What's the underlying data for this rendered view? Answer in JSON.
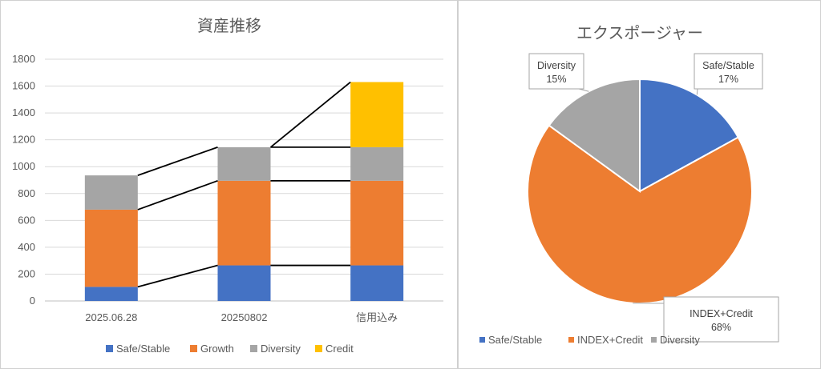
{
  "chart_data": [
    {
      "type": "bar",
      "stacked": true,
      "title": "資産推移",
      "categories": [
        "2025.06.28",
        "20250802",
        "信用込み"
      ],
      "series": [
        {
          "name": "Safe/Stable",
          "values": [
            105,
            265,
            265
          ],
          "color": "#4472C4"
        },
        {
          "name": "Growth",
          "values": [
            575,
            630,
            630
          ],
          "color": "#ED7D31"
        },
        {
          "name": "Diversity",
          "values": [
            255,
            250,
            250
          ],
          "color": "#A5A5A5"
        },
        {
          "name": "Credit",
          "values": [
            0,
            0,
            485
          ],
          "color": "#FFC000"
        }
      ],
      "ylim": [
        0,
        1800
      ],
      "yticks": [
        0,
        200,
        400,
        600,
        800,
        1000,
        1200,
        1400,
        1600,
        1800
      ],
      "grid": true,
      "legend": "bottom",
      "series_lines": true
    },
    {
      "type": "pie",
      "title": "エクスポージャー",
      "slices": [
        {
          "name": "Safe/Stable",
          "value": 17,
          "label": "17%",
          "color": "#4472C4"
        },
        {
          "name": "INDEX+Credit",
          "value": 68,
          "label": "68%",
          "color": "#ED7D31"
        },
        {
          "name": "Diversity",
          "value": 15,
          "label": "15%",
          "color": "#A5A5A5"
        }
      ],
      "legend": "bottom"
    }
  ]
}
